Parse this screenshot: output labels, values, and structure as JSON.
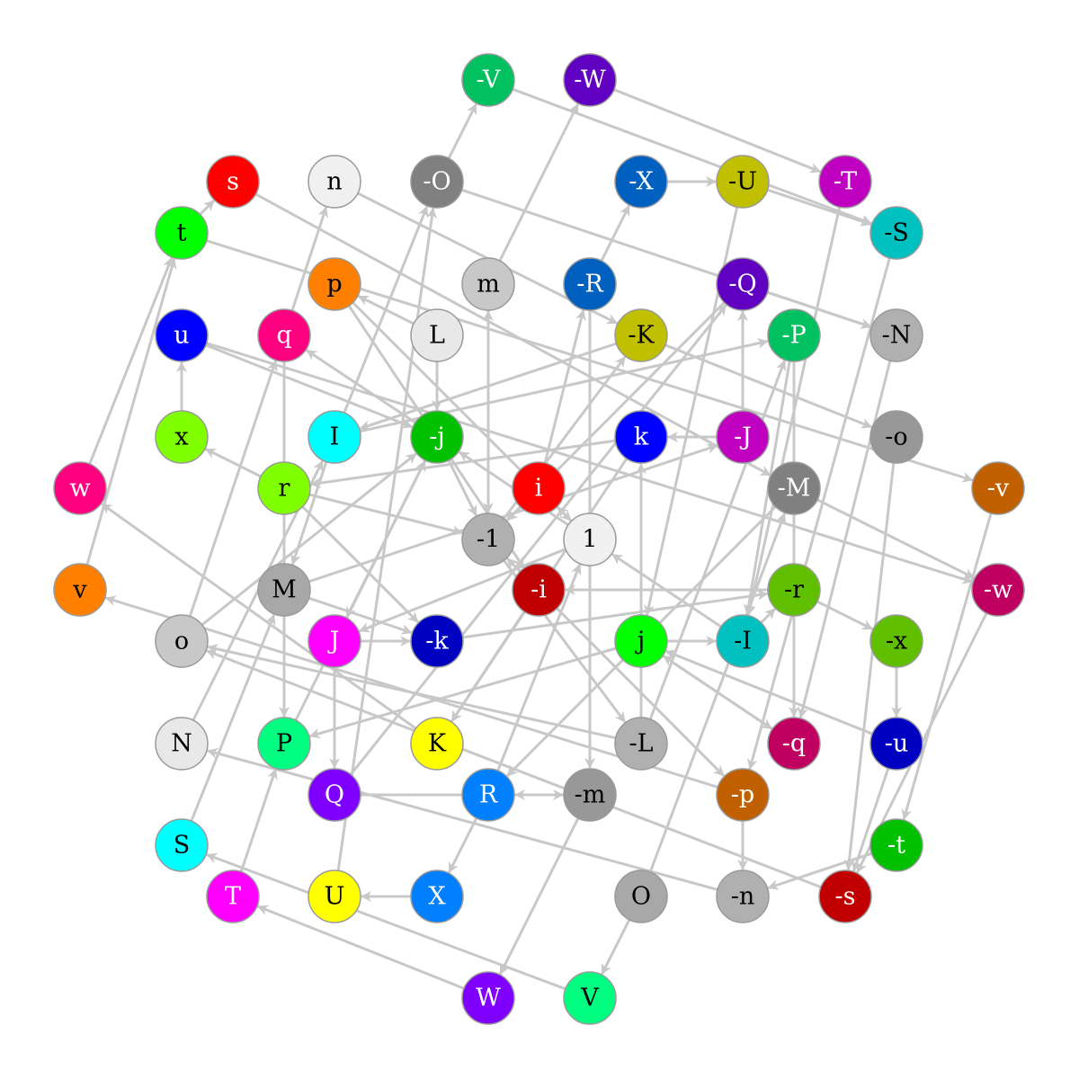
{
  "graph": {
    "nodes": [
      {
        "id": "-V",
        "label": "-V",
        "fill": "#00c060",
        "text": "#ffffff"
      },
      {
        "id": "-W",
        "label": "-W",
        "fill": "#6000c0",
        "text": "#ffffff"
      },
      {
        "id": "s",
        "label": "s",
        "fill": "#ff0000",
        "text": "#ffffff"
      },
      {
        "id": "n",
        "label": "n",
        "fill": "#f0f0f0",
        "text": "#000000"
      },
      {
        "id": "-O",
        "label": "-O",
        "fill": "#808080",
        "text": "#ffffff"
      },
      {
        "id": "-X",
        "label": "-X",
        "fill": "#0060c0",
        "text": "#ffffff"
      },
      {
        "id": "-U",
        "label": "-U",
        "fill": "#c0c000",
        "text": "#000000"
      },
      {
        "id": "-T",
        "label": "-T",
        "fill": "#c000c0",
        "text": "#ffffff"
      },
      {
        "id": "t",
        "label": "t",
        "fill": "#00ff00",
        "text": "#000000"
      },
      {
        "id": "-S",
        "label": "-S",
        "fill": "#00c0c0",
        "text": "#000000"
      },
      {
        "id": "p",
        "label": "p",
        "fill": "#ff8000",
        "text": "#000000"
      },
      {
        "id": "m",
        "label": "m",
        "fill": "#c8c8c8",
        "text": "#000000"
      },
      {
        "id": "-R",
        "label": "-R",
        "fill": "#0060c0",
        "text": "#ffffff"
      },
      {
        "id": "-Q",
        "label": "-Q",
        "fill": "#6000c0",
        "text": "#ffffff"
      },
      {
        "id": "u",
        "label": "u",
        "fill": "#0000ff",
        "text": "#ffffff"
      },
      {
        "id": "q",
        "label": "q",
        "fill": "#ff0080",
        "text": "#ffffff"
      },
      {
        "id": "L",
        "label": "L",
        "fill": "#e8e8e8",
        "text": "#000000"
      },
      {
        "id": "-K",
        "label": "-K",
        "fill": "#c0c000",
        "text": "#000000"
      },
      {
        "id": "-P",
        "label": "-P",
        "fill": "#00c060",
        "text": "#ffffff"
      },
      {
        "id": "-N",
        "label": "-N",
        "fill": "#b0b0b0",
        "text": "#000000"
      },
      {
        "id": "x",
        "label": "x",
        "fill": "#80ff00",
        "text": "#000000"
      },
      {
        "id": "I",
        "label": "I",
        "fill": "#00ffff",
        "text": "#000000"
      },
      {
        "id": "-j",
        "label": "-j",
        "fill": "#00c000",
        "text": "#ffffff"
      },
      {
        "id": "k",
        "label": "k",
        "fill": "#0000ff",
        "text": "#ffffff"
      },
      {
        "id": "-J",
        "label": "-J",
        "fill": "#c000c0",
        "text": "#ffffff"
      },
      {
        "id": "-o",
        "label": "-o",
        "fill": "#989898",
        "text": "#000000"
      },
      {
        "id": "w",
        "label": "w",
        "fill": "#ff0080",
        "text": "#ffffff"
      },
      {
        "id": "r",
        "label": "r",
        "fill": "#80ff00",
        "text": "#000000"
      },
      {
        "id": "i",
        "label": "i",
        "fill": "#ff0000",
        "text": "#ffffff"
      },
      {
        "id": "-M",
        "label": "-M",
        "fill": "#808080",
        "text": "#ffffff"
      },
      {
        "id": "-v",
        "label": "-v",
        "fill": "#c06000",
        "text": "#ffffff"
      },
      {
        "id": "-1",
        "label": "-1",
        "fill": "#b0b0b0",
        "text": "#000000"
      },
      {
        "id": "1",
        "label": "1",
        "fill": "#f0f0f0",
        "text": "#000000"
      },
      {
        "id": "v",
        "label": "v",
        "fill": "#ff8000",
        "text": "#000000"
      },
      {
        "id": "M",
        "label": "M",
        "fill": "#a8a8a8",
        "text": "#000000"
      },
      {
        "id": "-i",
        "label": "-i",
        "fill": "#c00000",
        "text": "#ffffff"
      },
      {
        "id": "-r",
        "label": "-r",
        "fill": "#60c000",
        "text": "#000000"
      },
      {
        "id": "-w",
        "label": "-w",
        "fill": "#c00060",
        "text": "#ffffff"
      },
      {
        "id": "o",
        "label": "o",
        "fill": "#c8c8c8",
        "text": "#000000"
      },
      {
        "id": "J",
        "label": "J",
        "fill": "#ff00ff",
        "text": "#ffffff"
      },
      {
        "id": "-k",
        "label": "-k",
        "fill": "#0000c0",
        "text": "#ffffff"
      },
      {
        "id": "j",
        "label": "j",
        "fill": "#00ff00",
        "text": "#000000"
      },
      {
        "id": "-I",
        "label": "-I",
        "fill": "#00c0c0",
        "text": "#000000"
      },
      {
        "id": "-x",
        "label": "-x",
        "fill": "#60c000",
        "text": "#000000"
      },
      {
        "id": "N",
        "label": "N",
        "fill": "#e8e8e8",
        "text": "#000000"
      },
      {
        "id": "P",
        "label": "P",
        "fill": "#00ff80",
        "text": "#000000"
      },
      {
        "id": "K",
        "label": "K",
        "fill": "#ffff00",
        "text": "#000000"
      },
      {
        "id": "-L",
        "label": "-L",
        "fill": "#b0b0b0",
        "text": "#000000"
      },
      {
        "id": "-q",
        "label": "-q",
        "fill": "#c00060",
        "text": "#ffffff"
      },
      {
        "id": "-u",
        "label": "-u",
        "fill": "#0000c0",
        "text": "#ffffff"
      },
      {
        "id": "Q",
        "label": "Q",
        "fill": "#8000ff",
        "text": "#ffffff"
      },
      {
        "id": "R",
        "label": "R",
        "fill": "#0080ff",
        "text": "#ffffff"
      },
      {
        "id": "-m",
        "label": "-m",
        "fill": "#989898",
        "text": "#000000"
      },
      {
        "id": "-p",
        "label": "-p",
        "fill": "#c06000",
        "text": "#ffffff"
      },
      {
        "id": "S",
        "label": "S",
        "fill": "#00ffff",
        "text": "#000000"
      },
      {
        "id": "-t",
        "label": "-t",
        "fill": "#00c000",
        "text": "#ffffff"
      },
      {
        "id": "T",
        "label": "T",
        "fill": "#ff00ff",
        "text": "#ffffff"
      },
      {
        "id": "U",
        "label": "U",
        "fill": "#ffff00",
        "text": "#000000"
      },
      {
        "id": "X",
        "label": "X",
        "fill": "#0080ff",
        "text": "#ffffff"
      },
      {
        "id": "O",
        "label": "O",
        "fill": "#a8a8a8",
        "text": "#000000"
      },
      {
        "id": "-n",
        "label": "-n",
        "fill": "#b0b0b0",
        "text": "#000000"
      },
      {
        "id": "-s",
        "label": "-s",
        "fill": "#c00000",
        "text": "#ffffff"
      },
      {
        "id": "W",
        "label": "W",
        "fill": "#8000ff",
        "text": "#ffffff"
      },
      {
        "id": "V",
        "label": "V",
        "fill": "#00ff80",
        "text": "#000000"
      }
    ],
    "edges": [
      [
        "-W",
        "-T"
      ],
      [
        "-V",
        "-S"
      ],
      [
        "-X",
        "-U"
      ],
      [
        "-O",
        "-N"
      ],
      [
        "n",
        "-K"
      ],
      [
        "s",
        "-M"
      ],
      [
        "t",
        "-v"
      ],
      [
        "u",
        "-w"
      ],
      [
        "-K",
        "-o"
      ],
      [
        "-U",
        "j"
      ],
      [
        "-T",
        "-I"
      ],
      [
        "-S",
        "-p"
      ],
      [
        "-N",
        "-q"
      ],
      [
        "-o",
        "-s"
      ],
      [
        "-v",
        "-t"
      ],
      [
        "-w",
        "-s"
      ],
      [
        "-x",
        "-u"
      ],
      [
        "-u",
        "-s"
      ],
      [
        "-r",
        "-x"
      ],
      [
        "-I",
        "-r"
      ],
      [
        "-P",
        "-I"
      ],
      [
        "-J",
        "-Q"
      ],
      [
        "-Q",
        "-1"
      ],
      [
        "-R",
        "-X"
      ],
      [
        "m",
        "-W"
      ],
      [
        "-1",
        "m"
      ],
      [
        "1",
        "-j"
      ],
      [
        "-O",
        "-V"
      ],
      [
        "I",
        "-O"
      ],
      [
        "q",
        "n"
      ],
      [
        "u",
        "-j"
      ],
      [
        "x",
        "u"
      ],
      [
        "t",
        "s"
      ],
      [
        "w",
        "t"
      ],
      [
        "v",
        "t"
      ],
      [
        "o",
        "q"
      ],
      [
        "N",
        "I"
      ],
      [
        "S",
        "M"
      ],
      [
        "T",
        "P"
      ],
      [
        "U",
        "-O"
      ],
      [
        "X",
        "U"
      ],
      [
        "R",
        "X"
      ],
      [
        "W",
        "T"
      ],
      [
        "V",
        "S"
      ],
      [
        "O",
        "V"
      ],
      [
        "-m",
        "W"
      ],
      [
        "-n",
        "N"
      ],
      [
        "-s",
        "o"
      ],
      [
        "-t",
        "-n"
      ],
      [
        "Q",
        "-m"
      ],
      [
        "P",
        "-j"
      ],
      [
        "K",
        "w"
      ],
      [
        "-L",
        "o"
      ],
      [
        "-q",
        "j"
      ],
      [
        "-p",
        "v"
      ],
      [
        "J",
        "-k"
      ],
      [
        "J",
        "Q"
      ],
      [
        "M",
        "-J"
      ],
      [
        "-k",
        "-r"
      ],
      [
        "-i",
        "-1"
      ],
      [
        "-m",
        "R"
      ],
      [
        "-L",
        "k"
      ],
      [
        "i",
        "-1"
      ],
      [
        "1",
        "i"
      ],
      [
        "r",
        "x"
      ],
      [
        "r",
        "-k"
      ],
      [
        "I",
        "-P"
      ],
      [
        "L",
        "-j"
      ],
      [
        "k",
        "r"
      ],
      [
        "-j",
        "q"
      ],
      [
        "-j",
        "-1"
      ],
      [
        "p",
        "-i"
      ],
      [
        "-1",
        "-p"
      ],
      [
        "j",
        "-I"
      ],
      [
        "j",
        "-q"
      ],
      [
        "-j",
        "J"
      ],
      [
        "-K",
        "I"
      ],
      [
        "1",
        "J"
      ],
      [
        "1",
        "-m"
      ],
      [
        "O",
        "-M"
      ],
      [
        "-M",
        "-w"
      ],
      [
        "-i",
        "K"
      ],
      [
        "-J",
        "k"
      ],
      [
        "-1",
        "-L"
      ],
      [
        "-1",
        "-K"
      ],
      [
        "-R",
        "-m"
      ],
      [
        "k",
        "K"
      ],
      [
        "-M",
        "R"
      ],
      [
        "-P",
        "-q"
      ],
      [
        "-u",
        "j"
      ],
      [
        "-L",
        "-P"
      ],
      [
        "-I",
        "1"
      ],
      [
        "R",
        "1"
      ],
      [
        "M",
        "-k"
      ],
      [
        "Q",
        "-Q"
      ],
      [
        "p",
        "1"
      ],
      [
        "L",
        "p"
      ],
      [
        "i",
        "-R"
      ],
      [
        "r",
        "-1"
      ],
      [
        "I",
        "M"
      ],
      [
        "q",
        "P"
      ],
      [
        "-Q",
        "-N"
      ],
      [
        "-U",
        "-S"
      ],
      [
        "-p",
        "-n"
      ],
      [
        "-r",
        "-i"
      ],
      [
        "j",
        "P"
      ],
      [
        "m",
        "-1"
      ],
      [
        "o",
        "-j"
      ]
    ]
  }
}
